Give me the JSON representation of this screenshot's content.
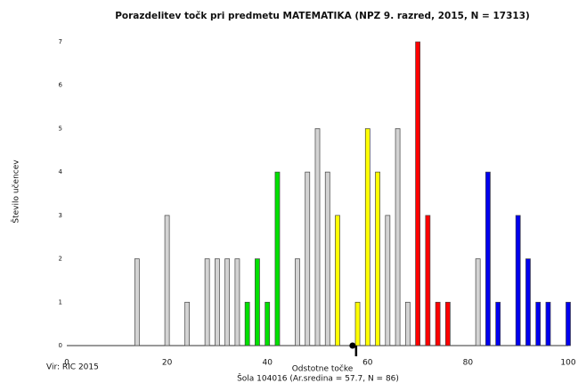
{
  "chart_data": {
    "type": "bar",
    "title": "Porazdelitev točk pri predmetu MATEMATIKA (NPZ 9. razred, 2015, N = 17313)",
    "y_label": "Število učencev",
    "x_label": "Odstotne točke",
    "subtitle": "Šola 104016 (Ar.sredina = 57.7, N = 86)",
    "source": "Vir: RIC 2015",
    "mean_marker": 57.7,
    "xlim": [
      0,
      100
    ],
    "xticks": [
      0,
      20,
      40,
      60,
      80,
      100
    ],
    "ylim": [
      0,
      7
    ],
    "yticks": [
      0,
      1,
      2,
      3,
      4,
      5,
      6,
      7
    ],
    "series": [
      {
        "color": "#d3d3d3",
        "x": [
          14,
          20,
          24,
          28,
          30,
          32,
          34,
          46,
          48,
          50,
          52,
          64,
          66,
          68,
          82
        ],
        "values": [
          2,
          3,
          1,
          2,
          2,
          2,
          2,
          2,
          4,
          5,
          4,
          3,
          5,
          1,
          2
        ]
      },
      {
        "color": "#00e000",
        "x": [
          36,
          38,
          40,
          42
        ],
        "values": [
          1,
          2,
          1,
          4
        ]
      },
      {
        "color": "#ffff00",
        "x": [
          54,
          58,
          60,
          62
        ],
        "values": [
          3,
          1,
          5,
          4
        ]
      },
      {
        "color": "#ff0000",
        "x": [
          70,
          72,
          74,
          76
        ],
        "values": [
          7,
          3,
          1,
          1
        ]
      },
      {
        "color": "#0000ee",
        "x": [
          84,
          86,
          90,
          92,
          94,
          96,
          100
        ],
        "values": [
          4,
          1,
          3,
          2,
          1,
          1,
          1
        ]
      }
    ]
  }
}
